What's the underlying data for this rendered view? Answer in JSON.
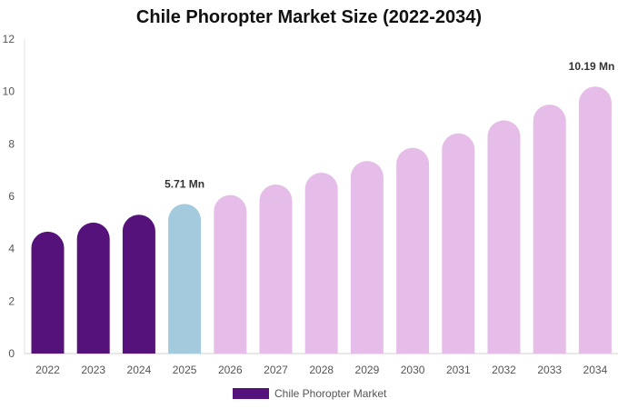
{
  "chart_data": {
    "type": "bar",
    "title": "Chile Phoropter Market Size (2022-2034)",
    "xlabel": "",
    "ylabel": "",
    "categories": [
      "2022",
      "2023",
      "2024",
      "2025",
      "2026",
      "2027",
      "2028",
      "2029",
      "2030",
      "2031",
      "2032",
      "2033",
      "2034"
    ],
    "series": [
      {
        "name": "Chile Phoropter Market",
        "values": [
          4.65,
          5.0,
          5.3,
          5.71,
          6.05,
          6.45,
          6.9,
          7.35,
          7.85,
          8.4,
          8.9,
          9.5,
          10.19
        ]
      }
    ],
    "bar_colors": [
      "#54127a",
      "#54127a",
      "#54127a",
      "#a4cadd",
      "#e6bde8",
      "#e6bde8",
      "#e6bde8",
      "#e6bde8",
      "#e6bde8",
      "#e6bde8",
      "#e6bde8",
      "#e6bde8",
      "#e6bde8"
    ],
    "data_labels": [
      {
        "index": 3,
        "text": "5.71 Mn"
      },
      {
        "index": 12,
        "text": "10.19 Mn"
      }
    ],
    "ylim": [
      0,
      12
    ],
    "yticks": [
      0,
      2,
      4,
      6,
      8,
      10,
      12
    ],
    "grid": false,
    "legend_position": "bottom-center",
    "legend_color": "#54127a"
  }
}
